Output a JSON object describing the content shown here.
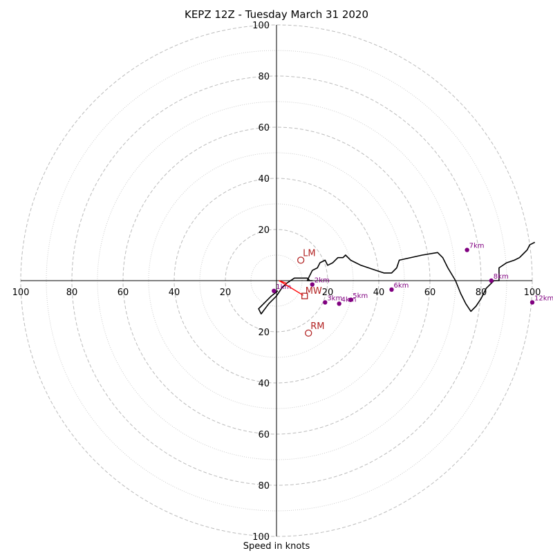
{
  "chart_data": {
    "type": "hodograph",
    "title": "KEPZ 12Z - Tuesday March 31 2020",
    "xlabel": "Speed in knots",
    "rings": [
      20,
      40,
      60,
      80,
      100
    ],
    "tick_labels": [
      "100",
      "80",
      "60",
      "40",
      "20",
      "20",
      "40",
      "60",
      "80",
      "100"
    ],
    "axis_range": [
      -100,
      100
    ],
    "wind_profile_uv": [
      [
        0.5,
        -4
      ],
      [
        -2,
        -6
      ],
      [
        -6,
        -10
      ],
      [
        -7,
        -11
      ],
      [
        -6,
        -13
      ],
      [
        -3,
        -9
      ],
      [
        0,
        -6
      ],
      [
        2,
        -3
      ],
      [
        4,
        -1
      ],
      [
        7,
        1
      ],
      [
        10,
        1
      ],
      [
        12,
        1
      ],
      [
        13,
        0
      ],
      [
        14,
        0
      ],
      [
        12,
        0
      ],
      [
        13,
        2
      ],
      [
        14,
        4
      ],
      [
        16,
        5
      ],
      [
        17,
        7
      ],
      [
        19,
        8
      ],
      [
        20,
        6
      ],
      [
        22,
        7
      ],
      [
        24,
        9
      ],
      [
        26,
        9
      ],
      [
        27,
        10
      ],
      [
        29,
        8
      ],
      [
        31,
        7
      ],
      [
        33,
        6
      ],
      [
        36,
        5
      ],
      [
        39,
        4
      ],
      [
        42,
        3
      ],
      [
        45,
        3
      ],
      [
        47,
        5
      ],
      [
        48,
        8
      ],
      [
        57,
        10
      ],
      [
        63,
        11
      ],
      [
        65,
        9
      ],
      [
        67,
        5
      ],
      [
        70,
        0
      ],
      [
        72,
        -5
      ],
      [
        74,
        -9
      ],
      [
        76,
        -12
      ],
      [
        78,
        -10
      ],
      [
        80,
        -7
      ],
      [
        82,
        -3
      ],
      [
        83,
        -2
      ],
      [
        85,
        0
      ],
      [
        87,
        0
      ],
      [
        87,
        2
      ],
      [
        87,
        5
      ],
      [
        90,
        7
      ],
      [
        93,
        8
      ],
      [
        95,
        9
      ],
      [
        96,
        10
      ],
      [
        98,
        12
      ],
      [
        99,
        14
      ],
      [
        101,
        15
      ]
    ],
    "height_markers": [
      {
        "label": "1km",
        "u": -1,
        "v": -4
      },
      {
        "label": "2km",
        "u": 14,
        "v": -1.5
      },
      {
        "label": "3km",
        "u": 19,
        "v": -8.5
      },
      {
        "label": "4km",
        "u": 24.5,
        "v": -9
      },
      {
        "label": "5km",
        "u": 29,
        "v": -7.5
      },
      {
        "label": "6km",
        "u": 45,
        "v": -3.5
      },
      {
        "label": "7km",
        "u": 74.5,
        "v": 12
      },
      {
        "label": "8km",
        "u": 84,
        "v": 0
      },
      {
        "label": "12km",
        "u": 100,
        "v": -8.5
      }
    ],
    "motion_markers": [
      {
        "label": "LM",
        "u": 9.5,
        "v": 8
      },
      {
        "label": "RM",
        "u": 12.5,
        "v": -20.5
      },
      {
        "label": "MW",
        "u": 11,
        "v": -6
      }
    ],
    "colors": {
      "profile": "#000000",
      "height_markers": "#800080",
      "motion": "#b22222",
      "vector": "#ff0000",
      "ring_dashed": "#bbbbbb",
      "ring_dotted": "#cccccc"
    }
  }
}
